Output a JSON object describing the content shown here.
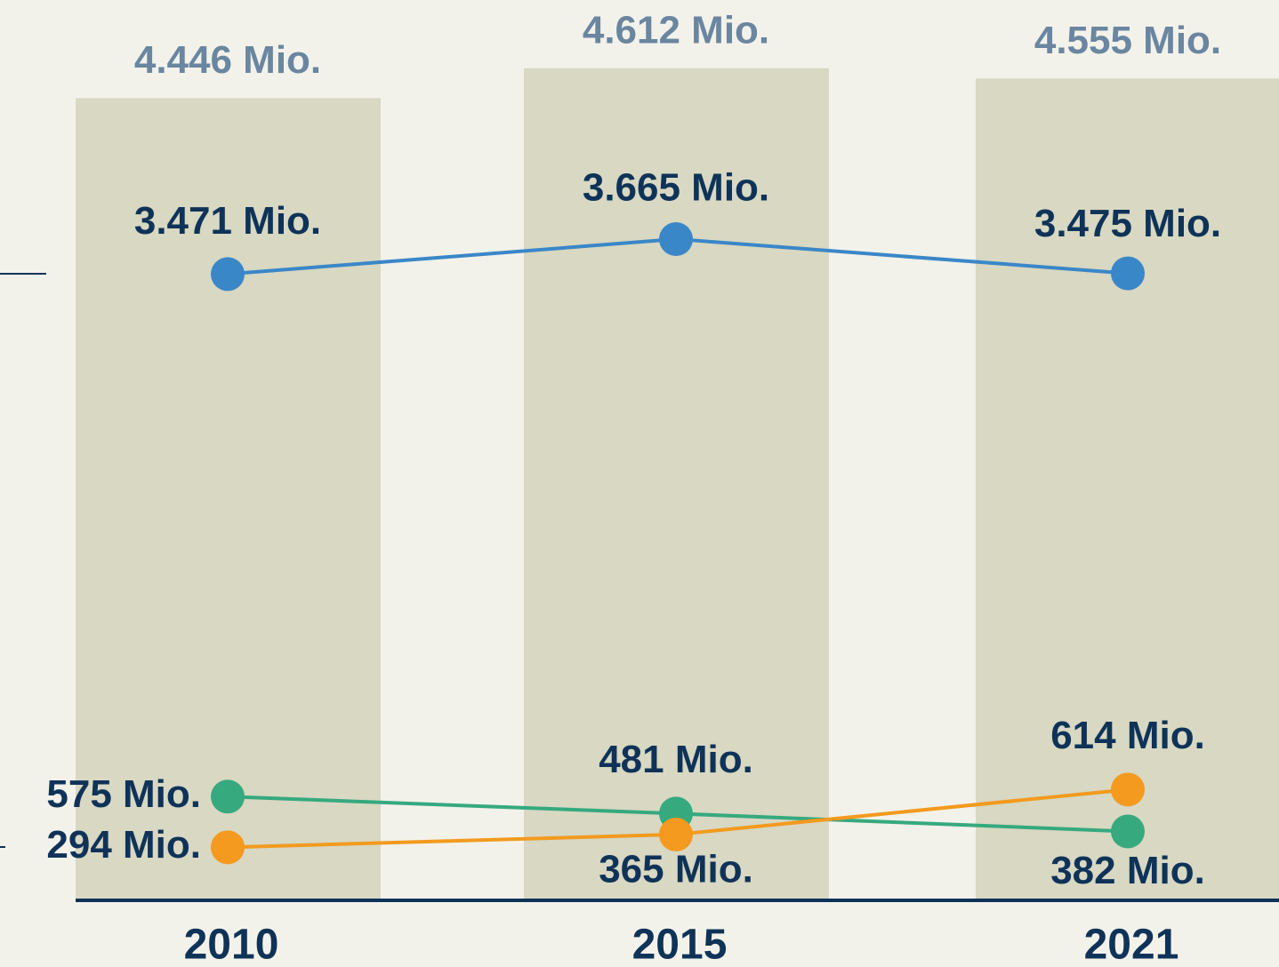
{
  "chart_data": {
    "type": "bar-line",
    "categories": [
      "2010",
      "2015",
      "2021"
    ],
    "bars": {
      "color": "#d8d8c3",
      "values": [
        4446,
        4612,
        4555
      ],
      "value_labels": [
        "4.446 Mio.",
        "4.612 Mio.",
        "4.555 Mio."
      ]
    },
    "series": [
      {
        "color": "#3a87c8",
        "values": [
          3471,
          3665,
          3475
        ],
        "value_labels": [
          "3.471 Mio.",
          "3.665 Mio.",
          "3.475 Mio."
        ]
      },
      {
        "color": "#36a97f",
        "values": [
          575,
          481,
          382
        ],
        "value_labels": [
          "575 Mio.",
          "481 Mio.",
          "382 Mio."
        ]
      },
      {
        "color": "#f39a1f",
        "values": [
          294,
          365,
          614
        ],
        "value_labels": [
          "294 Mio.",
          "365 Mio.",
          "614 Mio."
        ]
      }
    ],
    "ylim": [
      0,
      5000
    ]
  }
}
